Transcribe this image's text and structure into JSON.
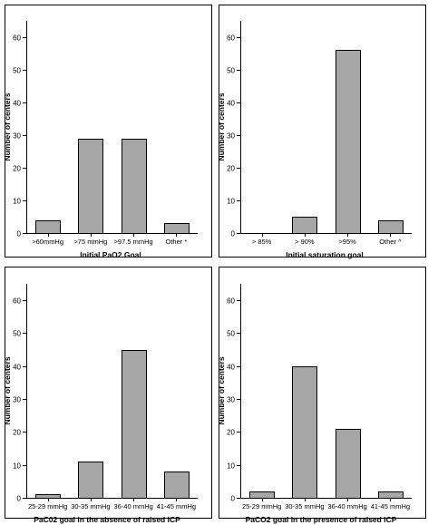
{
  "chart_data": [
    {
      "type": "bar",
      "categories": [
        ">60mmHg",
        ">75 mmHg",
        ">97.5 mmHg",
        "Other *"
      ],
      "values": [
        4,
        29,
        29,
        3
      ],
      "xlabel": "Initial PaO2 Goal",
      "ylabel": "Number of centers",
      "ylim": [
        0,
        65
      ],
      "yticks": [
        0,
        10,
        20,
        30,
        40,
        50,
        60
      ],
      "grid": false,
      "bar_color": "#a6a6a6"
    },
    {
      "type": "bar",
      "categories": [
        "> 85%",
        "> 90%",
        ">95%",
        "Other ^"
      ],
      "values": [
        0,
        5,
        56,
        4
      ],
      "xlabel": "Initial saturation goal",
      "ylabel": "Number of centers",
      "ylim": [
        0,
        65
      ],
      "yticks": [
        0,
        10,
        20,
        30,
        40,
        50,
        60
      ],
      "grid": false,
      "bar_color": "#a6a6a6"
    },
    {
      "type": "bar",
      "categories": [
        "25-29 mmHg",
        "30-35 mmHg",
        "36-40 mmHg",
        "41-45 mmHg"
      ],
      "values": [
        1,
        11,
        45,
        8
      ],
      "xlabel": "PaC02 goal in the absence of raised ICP",
      "ylabel": "Number of centers",
      "ylim": [
        0,
        65
      ],
      "yticks": [
        0,
        10,
        20,
        30,
        40,
        50,
        60
      ],
      "grid": false,
      "bar_color": "#a6a6a6"
    },
    {
      "type": "bar",
      "categories": [
        "25-29 mmHg",
        "30-35 mmHg",
        "36-40 mmHg",
        "41-45 mmHg"
      ],
      "values": [
        2,
        40,
        21,
        2
      ],
      "xlabel": "PaCO2 goal in the presence of raised ICP",
      "ylabel": "Number of centers",
      "ylim": [
        0,
        65
      ],
      "yticks": [
        0,
        10,
        20,
        30,
        40,
        50,
        60
      ],
      "grid": false,
      "bar_color": "#a6a6a6"
    }
  ]
}
